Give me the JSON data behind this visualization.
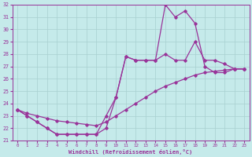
{
  "xlabel": "Windchill (Refroidissement éolien,°C)",
  "xlim": [
    -0.5,
    23.5
  ],
  "ylim": [
    21,
    32
  ],
  "xticks": [
    0,
    1,
    2,
    3,
    4,
    5,
    6,
    7,
    8,
    9,
    10,
    11,
    12,
    13,
    14,
    15,
    16,
    17,
    18,
    19,
    20,
    21,
    22,
    23
  ],
  "yticks": [
    21,
    22,
    23,
    24,
    25,
    26,
    27,
    28,
    29,
    30,
    31,
    32
  ],
  "bg_color": "#c5eaea",
  "line_color": "#993399",
  "grid_color": "#a8d0d0",
  "line1": {
    "x": [
      0,
      1,
      2,
      3,
      4,
      5,
      6,
      7,
      8,
      9,
      10,
      11,
      12,
      13,
      14,
      15,
      16,
      17,
      18,
      19,
      20,
      21,
      22,
      23
    ],
    "y": [
      23.5,
      23.2,
      23.0,
      22.8,
      22.6,
      22.5,
      22.4,
      22.3,
      22.2,
      22.5,
      23.0,
      23.5,
      24.0,
      24.5,
      25.0,
      25.4,
      25.7,
      26.0,
      26.3,
      26.5,
      26.6,
      26.7,
      26.8,
      26.8
    ]
  },
  "line2": {
    "x": [
      0,
      1,
      2,
      3,
      4,
      5,
      6,
      7,
      8,
      9,
      10,
      11,
      12,
      13,
      14,
      15,
      16,
      17,
      18,
      19,
      20,
      21,
      22,
      23
    ],
    "y": [
      23.5,
      23.0,
      22.5,
      22.0,
      21.5,
      21.5,
      21.5,
      21.5,
      21.5,
      22.0,
      24.5,
      27.8,
      27.5,
      27.5,
      27.5,
      28.0,
      27.5,
      27.5,
      29.0,
      27.5,
      27.5,
      27.2,
      26.8,
      26.8
    ]
  },
  "line3": {
    "x": [
      0,
      1,
      2,
      3,
      4,
      5,
      6,
      7,
      8,
      9,
      10,
      11,
      12,
      13,
      14,
      15,
      16,
      17,
      18,
      19,
      20,
      21,
      22,
      23
    ],
    "y": [
      23.5,
      23.0,
      22.5,
      22.0,
      21.5,
      21.5,
      21.5,
      21.5,
      21.5,
      23.0,
      24.5,
      27.8,
      27.5,
      27.5,
      27.5,
      32.0,
      31.0,
      31.5,
      30.5,
      27.0,
      26.5,
      26.5,
      26.8,
      26.8
    ]
  }
}
